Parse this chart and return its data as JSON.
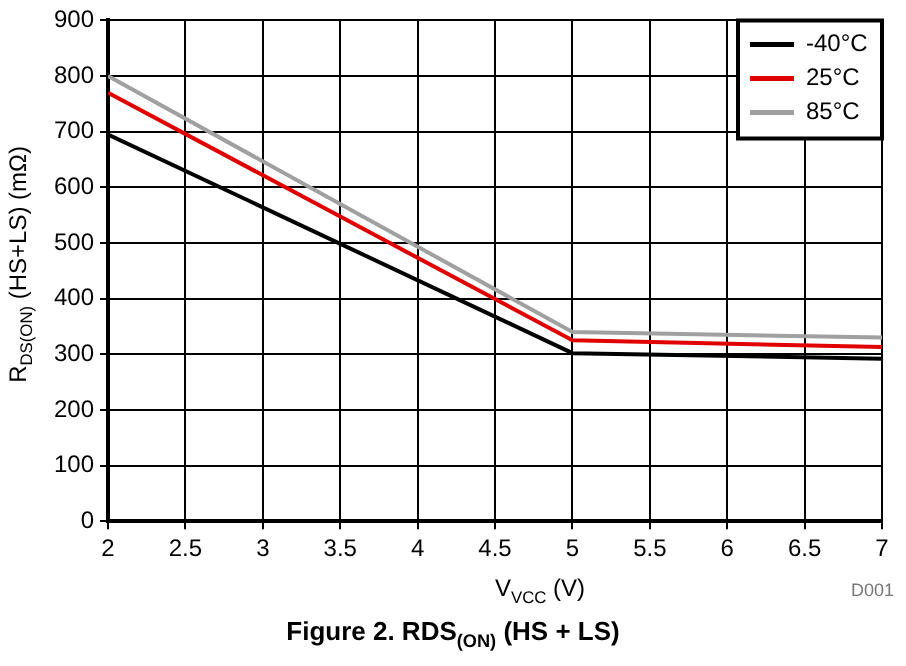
{
  "chart_data": {
    "type": "line",
    "title": "Figure 2. RDS$_{(ON)}$ (HS + LS)",
    "xlabel": "V$_{VCC}$ (V)",
    "ylabel": "R$_{DS(ON)}$ (HS+LS) (mΩ)",
    "annotations": [
      "D001"
    ],
    "x": [
      2,
      5,
      7
    ],
    "series": [
      {
        "name": "-40°C",
        "color": "#000000",
        "values": [
          695,
          302,
          292
        ]
      },
      {
        "name": "25°C",
        "color": "#e00000",
        "values": [
          770,
          325,
          313
        ]
      },
      {
        "name": "85°C",
        "color": "#a0a0a0",
        "values": [
          800,
          340,
          330
        ]
      }
    ],
    "xlim": [
      2,
      7
    ],
    "xticks": [
      2,
      2.5,
      3,
      3.5,
      4,
      4.5,
      5,
      5.5,
      6,
      6.5,
      7
    ],
    "ylim": [
      0,
      900
    ],
    "yticks": [
      0,
      100,
      200,
      300,
      400,
      500,
      600,
      700,
      800,
      900
    ],
    "grid": true,
    "legend": "top right",
    "marker": "none",
    "line_style": "solid"
  }
}
